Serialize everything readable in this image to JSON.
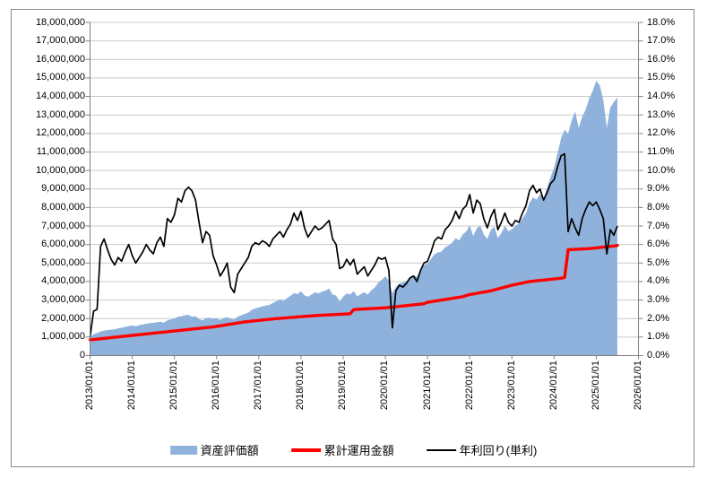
{
  "colors": {
    "area_fill": "#8FB2DD",
    "invested_line": "#FF0000",
    "yield_line": "#000000",
    "gridline": "#C9C9C9",
    "axis_line": "#808080",
    "chart_border": "#898989",
    "background": "#FFFFFF"
  },
  "legend": {
    "items": [
      {
        "label": "資産評価額"
      },
      {
        "label": "累計運用金額"
      },
      {
        "label": "年利回り(単利)"
      }
    ]
  },
  "chart_data": {
    "type": "area+line combo",
    "title": "",
    "x_frequency": "monthly",
    "x_start": "2013/01",
    "x_end": "2025/07",
    "x_tick_labels": [
      "2013/01/01",
      "2014/01/01",
      "2015/01/01",
      "2016/01/01",
      "2017/01/01",
      "2018/01/01",
      "2019/01/01",
      "2020/01/01",
      "2021/01/01",
      "2022/01/01",
      "2023/01/01",
      "2024/01/01",
      "2025/01/01",
      "2026/01/01"
    ],
    "left_axis": {
      "unit": "JPY",
      "min": 0,
      "max": 18000000,
      "step": 1000000,
      "tick_labels": [
        "0",
        "1,000,000",
        "2,000,000",
        "3,000,000",
        "4,000,000",
        "5,000,000",
        "6,000,000",
        "7,000,000",
        "8,000,000",
        "9,000,000",
        "10,000,000",
        "11,000,000",
        "12,000,000",
        "13,000,000",
        "14,000,000",
        "15,000,000",
        "16,000,000",
        "17,000,000",
        "18,000,000"
      ]
    },
    "right_axis": {
      "unit": "percent",
      "min": 0,
      "max": 18,
      "step": 1,
      "tick_labels": [
        "0.0%",
        "1.0%",
        "2.0%",
        "3.0%",
        "4.0%",
        "5.0%",
        "6.0%",
        "7.0%",
        "8.0%",
        "9.0%",
        "10.0%",
        "11.0%",
        "12.0%",
        "13.0%",
        "14.0%",
        "15.0%",
        "16.0%",
        "17.0%",
        "18.0%"
      ]
    },
    "grid": true,
    "legend_position": "bottom",
    "series": [
      {
        "name": "資産評価額",
        "type": "area",
        "axis": "left",
        "color": "#8FB2DD",
        "values": [
          1000000,
          1150000,
          1220000,
          1300000,
          1350000,
          1380000,
          1400000,
          1420000,
          1470000,
          1500000,
          1550000,
          1600000,
          1620000,
          1580000,
          1650000,
          1680000,
          1720000,
          1750000,
          1770000,
          1800000,
          1830000,
          1780000,
          1900000,
          1950000,
          2000000,
          2100000,
          2120000,
          2180000,
          2200000,
          2100000,
          2120000,
          1980000,
          1900000,
          2020000,
          2050000,
          1980000,
          2020000,
          1920000,
          2020000,
          2080000,
          1980000,
          1950000,
          2100000,
          2180000,
          2250000,
          2320000,
          2480000,
          2550000,
          2600000,
          2660000,
          2700000,
          2740000,
          2840000,
          2940000,
          3020000,
          2960000,
          3100000,
          3220000,
          3380000,
          3320000,
          3480000,
          3250000,
          3180000,
          3300000,
          3420000,
          3360000,
          3460000,
          3520000,
          3620000,
          3300000,
          3240000,
          2920000,
          3180000,
          3360000,
          3300000,
          3480000,
          3200000,
          3320000,
          3420000,
          3300000,
          3520000,
          3680000,
          3950000,
          4100000,
          4280000,
          4050000,
          3350000,
          3720000,
          3900000,
          3950000,
          4020000,
          4220000,
          4320000,
          4250000,
          4620000,
          4880000,
          4980000,
          5220000,
          5480000,
          5580000,
          5620000,
          5850000,
          5950000,
          6100000,
          6350000,
          6220000,
          6550000,
          6700000,
          7050000,
          6450000,
          6880000,
          7020000,
          6550000,
          6300000,
          6780000,
          6980000,
          6350000,
          6620000,
          7020000,
          6720000,
          6820000,
          7020000,
          7120000,
          7420000,
          7680000,
          8250000,
          8550000,
          8420000,
          8720000,
          8480000,
          9050000,
          9650000,
          10150000,
          10950000,
          11750000,
          12200000,
          12000000,
          12700000,
          13200000,
          12300000,
          12900000,
          13300000,
          13900000,
          14300000,
          14850000,
          14600000,
          13800000,
          12300000,
          13400000,
          13700000,
          13950000
        ]
      },
      {
        "name": "累計運用金額",
        "type": "line",
        "axis": "left",
        "color": "#FF0000",
        "values": [
          850000,
          870000,
          890000,
          910000,
          930000,
          950000,
          970000,
          990000,
          1010000,
          1030000,
          1050000,
          1070000,
          1090000,
          1110000,
          1130000,
          1150000,
          1170000,
          1190000,
          1210000,
          1230000,
          1250000,
          1270000,
          1290000,
          1310000,
          1330000,
          1350000,
          1370000,
          1390000,
          1410000,
          1430000,
          1450000,
          1470000,
          1490000,
          1510000,
          1530000,
          1550000,
          1580000,
          1610000,
          1640000,
          1670000,
          1700000,
          1730000,
          1760000,
          1790000,
          1820000,
          1840000,
          1860000,
          1880000,
          1900000,
          1920000,
          1940000,
          1960000,
          1980000,
          2000000,
          2010000,
          2030000,
          2040000,
          2060000,
          2070000,
          2090000,
          2100000,
          2120000,
          2130000,
          2150000,
          2160000,
          2170000,
          2180000,
          2190000,
          2200000,
          2210000,
          2220000,
          2230000,
          2240000,
          2250000,
          2260000,
          2480000,
          2500000,
          2510000,
          2520000,
          2530000,
          2540000,
          2550000,
          2560000,
          2570000,
          2580000,
          2600000,
          2620000,
          2640000,
          2660000,
          2680000,
          2700000,
          2720000,
          2740000,
          2760000,
          2780000,
          2800000,
          2880000,
          2910000,
          2940000,
          2970000,
          3000000,
          3030000,
          3060000,
          3090000,
          3120000,
          3150000,
          3180000,
          3240000,
          3300000,
          3330000,
          3360000,
          3400000,
          3430000,
          3460000,
          3500000,
          3550000,
          3600000,
          3650000,
          3700000,
          3750000,
          3800000,
          3840000,
          3880000,
          3920000,
          3960000,
          4000000,
          4020000,
          4040000,
          4060000,
          4080000,
          4100000,
          4120000,
          4140000,
          4160000,
          4180000,
          4220000,
          5720000,
          5730000,
          5740000,
          5750000,
          5760000,
          5770000,
          5780000,
          5800000,
          5820000,
          5840000,
          5860000,
          5880000,
          5900000,
          5920000,
          5950000
        ]
      },
      {
        "name": "年利回り(単利)",
        "type": "line",
        "axis": "right",
        "color": "#000000",
        "values": [
          1.0,
          2.4,
          2.5,
          5.9,
          6.3,
          5.7,
          5.2,
          4.9,
          5.3,
          5.1,
          5.6,
          6.0,
          5.4,
          5.0,
          5.3,
          5.6,
          6.0,
          5.7,
          5.5,
          6.1,
          6.4,
          5.9,
          7.4,
          7.2,
          7.6,
          8.5,
          8.3,
          8.9,
          9.1,
          8.9,
          8.4,
          7.2,
          6.1,
          6.7,
          6.5,
          5.4,
          4.9,
          4.3,
          4.6,
          5.0,
          3.7,
          3.4,
          4.4,
          4.7,
          5.0,
          5.3,
          5.9,
          6.1,
          6.0,
          6.2,
          6.1,
          5.9,
          6.3,
          6.5,
          6.7,
          6.4,
          6.8,
          7.1,
          7.7,
          7.3,
          7.8,
          6.9,
          6.4,
          6.7,
          7.0,
          6.8,
          6.9,
          7.1,
          7.3,
          6.3,
          6.0,
          4.7,
          4.8,
          5.2,
          4.9,
          5.2,
          4.4,
          4.6,
          4.8,
          4.3,
          4.6,
          4.9,
          5.3,
          5.2,
          5.3,
          4.6,
          1.5,
          3.5,
          3.8,
          3.7,
          3.9,
          4.2,
          4.3,
          4.0,
          4.6,
          5.0,
          5.1,
          5.6,
          6.2,
          6.4,
          6.3,
          6.8,
          7.0,
          7.3,
          7.8,
          7.4,
          7.9,
          8.1,
          8.7,
          7.7,
          8.4,
          8.2,
          7.4,
          6.9,
          7.5,
          7.9,
          6.8,
          7.2,
          7.7,
          7.2,
          7.0,
          7.3,
          7.2,
          7.7,
          8.1,
          8.9,
          9.2,
          8.8,
          9.0,
          8.4,
          8.8,
          9.3,
          9.5,
          10.2,
          10.8,
          10.9,
          6.7,
          7.4,
          6.9,
          6.5,
          7.4,
          7.9,
          8.3,
          8.1,
          8.3,
          7.9,
          7.4,
          5.5,
          6.8,
          6.5,
          7.0
        ]
      }
    ]
  }
}
